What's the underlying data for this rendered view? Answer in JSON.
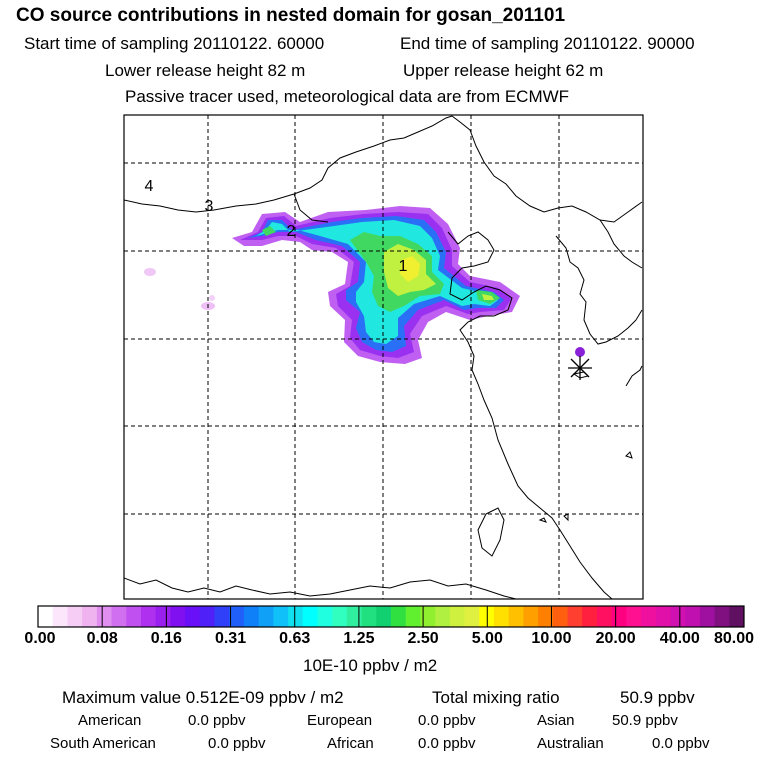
{
  "header": {
    "title": "CO  source contributions in nested domain for gosan_201101",
    "start_time": "Start time of sampling 20110122. 60000",
    "end_time": "End time of sampling 20110122. 90000",
    "lower_height": "Lower release height   82 m",
    "upper_height": "Upper release height   62 m",
    "note": "Passive tracer used, meteorological data are from ECMWF"
  },
  "map": {
    "markers": [
      "1",
      "2",
      "3",
      "4"
    ],
    "receptor_symbol": "asterisk-receptor"
  },
  "colorbar": {
    "ticks": [
      "0.00",
      "0.08",
      "0.16",
      "0.31",
      "0.63",
      "1.25",
      "2.50",
      "5.00",
      "10.00",
      "20.00",
      "40.00",
      "80.00"
    ],
    "units": "10E-10 ppbv / m2",
    "colors": [
      "#ffffff",
      "#fbe6fb",
      "#f5cdf5",
      "#efb4ef",
      "#e08ef0",
      "#d070f0",
      "#c050f0",
      "#b030f0",
      "#9a20f0",
      "#8010f0",
      "#6a10f8",
      "#5020f8",
      "#3040f8",
      "#2060f8",
      "#1080f8",
      "#10a0f8",
      "#10c0f8",
      "#10e0f0",
      "#00ffff",
      "#20ffe0",
      "#30ffc0",
      "#30f0a0",
      "#20e080",
      "#10d070",
      "#30e040",
      "#60f030",
      "#90f030",
      "#b0f040",
      "#d0f040",
      "#e0f040",
      "#ffff00",
      "#ffe000",
      "#ffc000",
      "#ffa000",
      "#ff8000",
      "#ff6010",
      "#ff4030",
      "#ff2040",
      "#ff1060",
      "#ff0080",
      "#ff1090",
      "#f010a0",
      "#e010a8",
      "#d010b0",
      "#c010b0",
      "#a010a0",
      "#801080",
      "#601060"
    ]
  },
  "stats": {
    "max_label": "Maximum value  0.512E-09 ppbv / m2",
    "total_label": "Total mixing ratio",
    "total_value": "50.9 ppbv",
    "regions": [
      {
        "name": "American",
        "value": "0.0 ppbv"
      },
      {
        "name": "European",
        "value": "0.0 ppbv"
      },
      {
        "name": "Asian",
        "value": "50.9 ppbv"
      },
      {
        "name": "South American",
        "value": "0.0 ppbv"
      },
      {
        "name": "African",
        "value": "0.0 ppbv"
      },
      {
        "name": "Australian",
        "value": "0.0 ppbv"
      }
    ]
  }
}
